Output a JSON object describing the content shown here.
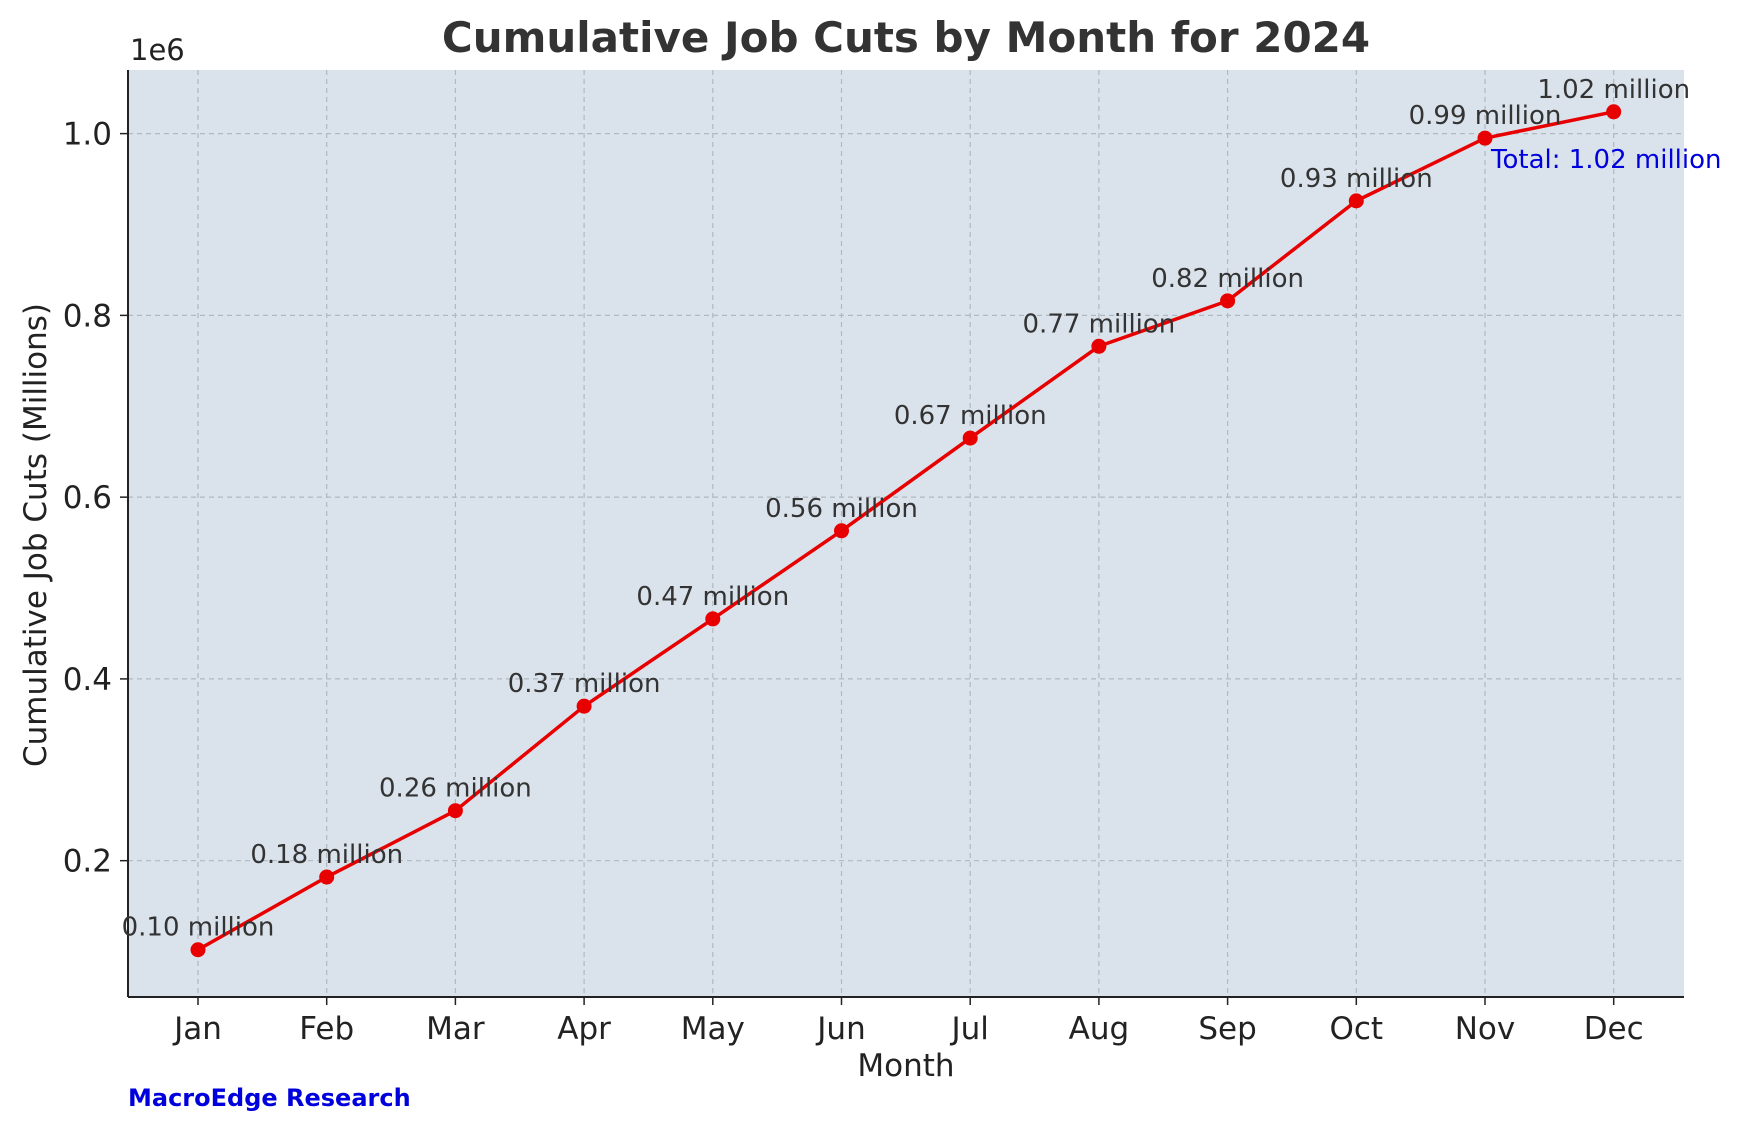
{
  "chart_data": {
    "type": "line",
    "title": "Cumulative Job Cuts by Month for 2024",
    "xlabel": "Month",
    "ylabel": "Cumulative Job Cuts (Millions)",
    "y_offset_label": "1e6",
    "categories": [
      "Jan",
      "Feb",
      "Mar",
      "Apr",
      "May",
      "Jun",
      "Jul",
      "Aug",
      "Sep",
      "Oct",
      "Nov",
      "Dec"
    ],
    "series": [
      {
        "values": [
          102000,
          182000,
          255000,
          370000,
          466000,
          563000,
          665000,
          766000,
          816000,
          926000,
          995000,
          1024000
        ],
        "labels": [
          "0.10 million",
          "0.18 million",
          "0.26 million",
          "0.37 million",
          "0.47 million",
          "0.56 million",
          "0.67 million",
          "0.77 million",
          "0.82 million",
          "0.93 million",
          "0.99 million",
          "1.02 million"
        ],
        "color": "#e80000"
      }
    ],
    "yticks": [
      0.2,
      0.4,
      0.6,
      0.8,
      1.0
    ],
    "ytick_labels": [
      "0.2",
      "0.4",
      "0.6",
      "0.8",
      "1.0"
    ],
    "ylim": [
      0.05,
      1.07
    ],
    "grid": true,
    "annotation": {
      "text": "Total: 1.02 million",
      "color": "#0000dd"
    },
    "plot_background": "#dae3eb"
  },
  "footer": {
    "source": "MacroEdge Research",
    "color": "#0000dd"
  }
}
